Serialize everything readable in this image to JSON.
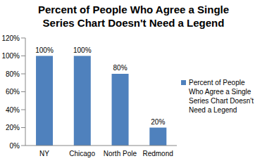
{
  "chart_data": {
    "type": "bar",
    "title": "Percent of People Who Agree a Single Series Chart Doesn't Need a Legend",
    "categories": [
      "NY",
      "Chicago",
      "North Pole",
      "Redmond"
    ],
    "series": [
      {
        "name": "Percent of People Who Agree a Single Series Chart Doesn't Need a Legend",
        "color": "#4f81bd",
        "values": [
          100,
          100,
          80,
          20
        ],
        "value_labels": [
          "100%",
          "100%",
          "80%",
          "20%"
        ]
      }
    ],
    "ylim": [
      0,
      120
    ],
    "yticks": [
      {
        "value": 0,
        "label": "0%"
      },
      {
        "value": 20,
        "label": "20%"
      },
      {
        "value": 40,
        "label": "40%"
      },
      {
        "value": 60,
        "label": "60%"
      },
      {
        "value": 80,
        "label": "80%"
      },
      {
        "value": 100,
        "label": "100%"
      },
      {
        "value": 120,
        "label": "120%"
      }
    ],
    "grid": false,
    "legend": "right",
    "data_labels": true
  }
}
